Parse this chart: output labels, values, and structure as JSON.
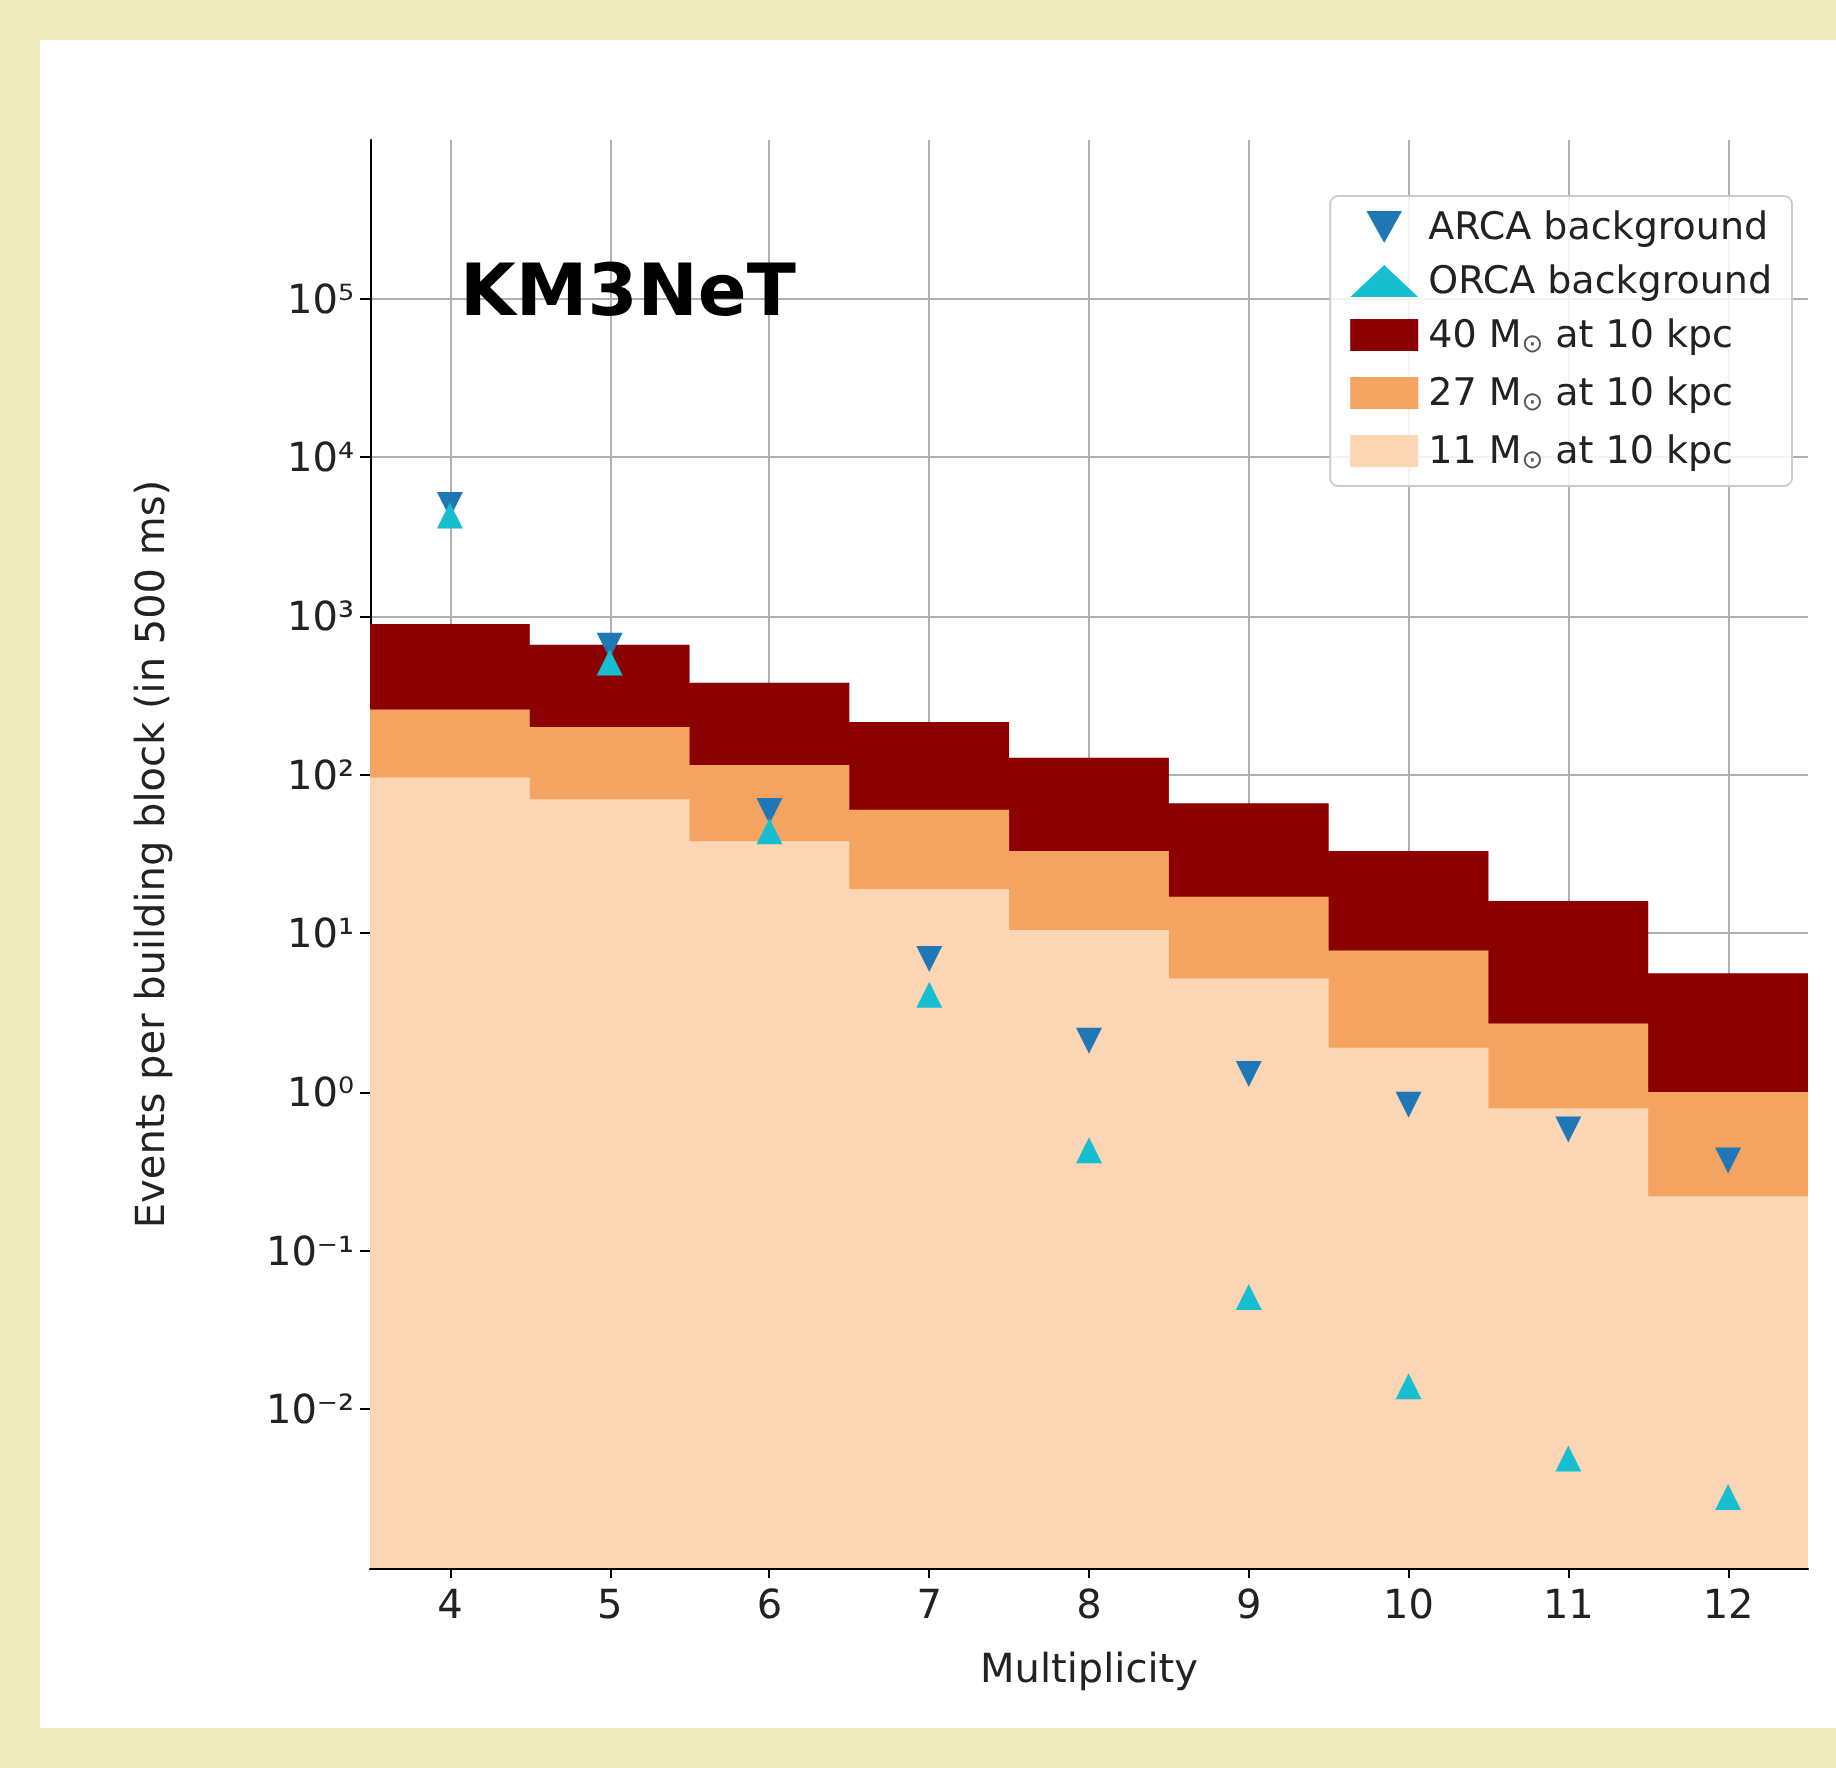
{
  "chart_data": {
    "type": "histogram",
    "annotations": [
      "KM3NeT"
    ],
    "xlabel": "Multiplicity",
    "ylabel": "Events per building block (in 500 ms)",
    "bins": [
      3.5,
      4.5,
      5.5,
      6.5,
      7.5,
      8.5,
      9.5,
      10.5,
      11.5,
      12.5
    ],
    "series": [
      {
        "name": "40 M$_{⊙}$ at 10 kpc",
        "color": "#8b0000",
        "values": [
          890,
          660,
          380,
          215,
          128,
          66,
          33,
          16,
          5.6
        ]
      },
      {
        "name": "27 M$_{⊙}$ at 10 kpc",
        "color": "#f4a460",
        "values": [
          257,
          200,
          115,
          60,
          33,
          17,
          7.8,
          2.7,
          1.0
        ]
      },
      {
        "name": "11 M$_{⊙}$ at 10 kpc",
        "color": "#fcd5b4",
        "values": [
          96,
          70,
          38,
          19,
          10.5,
          5.2,
          1.9,
          0.79,
          0.22
        ]
      },
      {
        "type": "scatter",
        "name": "ARCA background",
        "color": "#1f77b4",
        "marker": "triangle-down",
        "x": [
          4,
          5,
          6,
          7,
          8,
          9,
          10,
          11,
          12
        ],
        "values": [
          5000,
          650,
          59,
          6.9,
          2.1,
          1.3,
          0.83,
          0.58,
          0.37
        ]
      },
      {
        "type": "scatter",
        "name": "ORCA background",
        "color": "#17becf",
        "marker": "triangle",
        "x": [
          4,
          5,
          6,
          7,
          8,
          9,
          10,
          11,
          12
        ],
        "values": [
          4300,
          510,
          44,
          4.1,
          0.43,
          0.051,
          0.014,
          0.0049,
          0.0028
        ]
      }
    ],
    "xlim": [
      3.5,
      12.5
    ],
    "xticks": [
      4,
      5,
      6,
      7,
      8,
      9,
      10,
      11,
      12
    ],
    "ylim": [
      0.001,
      1000000
    ],
    "yticks": [
      {
        "value": 0.01,
        "label": "10⁻²"
      },
      {
        "value": 0.1,
        "label": "10⁻¹"
      },
      {
        "value": 1,
        "label": "10⁰"
      },
      {
        "value": 10,
        "label": "10¹"
      },
      {
        "value": 100,
        "label": "10²"
      },
      {
        "value": 1000,
        "label": "10³"
      },
      {
        "value": 10000,
        "label": "10⁴"
      },
      {
        "value": 100000,
        "label": "10⁵"
      }
    ],
    "log": "y",
    "grid": true,
    "legend": "top right"
  }
}
